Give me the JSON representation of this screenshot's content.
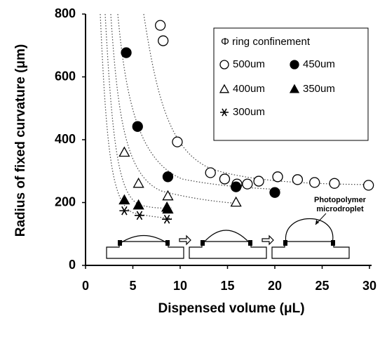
{
  "chart_data": {
    "type": "scatter",
    "xlabel": "Dispensed volume (μL)",
    "ylabel": "Radius of fixed curvature (μm)",
    "xlim": [
      0,
      30
    ],
    "ylim": [
      0,
      800
    ],
    "xticks": [
      0,
      5,
      10,
      15,
      20,
      25,
      30
    ],
    "yticks": [
      0,
      200,
      400,
      600,
      800
    ],
    "legend_title": "Φ ring confinement",
    "annotation": [
      "Photopolymer",
      "microdroplet"
    ],
    "series": [
      {
        "name": "500um",
        "color": "#000000",
        "marker": "open-circle",
        "x": [
          7.9,
          8.2,
          9.7,
          13.2,
          14.7,
          16,
          17.1,
          18.3,
          20.3,
          22.4,
          24.2,
          26.3,
          29.9
        ],
        "values": [
          764,
          715,
          393,
          295,
          275,
          259,
          259,
          268,
          282,
          273,
          264,
          261,
          255
        ]
      },
      {
        "name": "450um",
        "color": "#000000",
        "marker": "filled-circle",
        "x": [
          4.3,
          5.5,
          8.7,
          15.9,
          20
        ],
        "values": [
          677,
          442,
          282,
          250,
          232
        ]
      },
      {
        "name": "400um",
        "color": "#000000",
        "marker": "open-triangle",
        "x": [
          4.1,
          5.6,
          8.7,
          15.9
        ],
        "values": [
          360,
          261,
          221,
          201
        ]
      },
      {
        "name": "350um",
        "color": "#000000",
        "marker": "filled-triangle",
        "x": [
          4.1,
          5.6,
          8.6,
          8.7
        ],
        "values": [
          208,
          192,
          185,
          179
        ]
      },
      {
        "name": "300um",
        "color": "#000000",
        "marker": "star",
        "x": [
          4.1,
          5.7,
          8.6
        ],
        "values": [
          174,
          159,
          147
        ]
      }
    ]
  }
}
